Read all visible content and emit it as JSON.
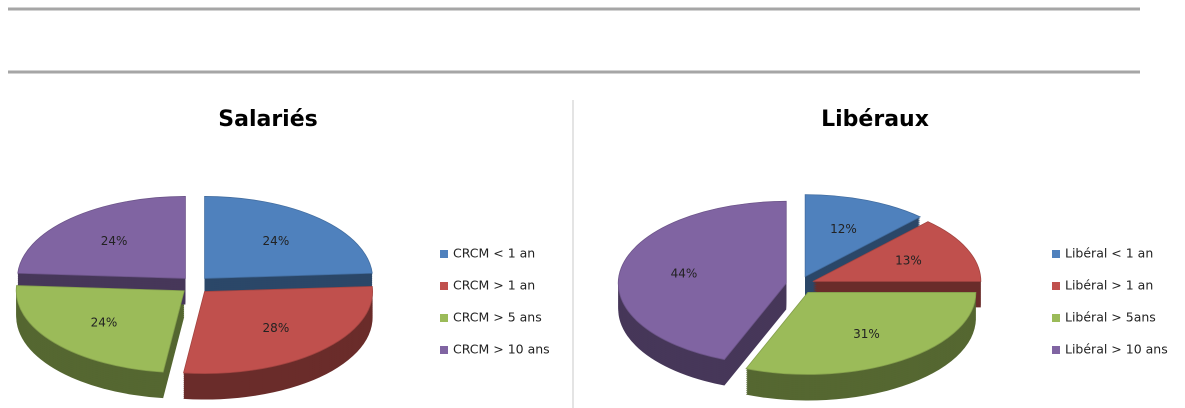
{
  "chart_data": [
    {
      "type": "pie",
      "title": "Salariés",
      "categories": [
        "CRCM < 1 an",
        "CRCM > 1 an",
        "CRCM > 5 ans",
        "CRCM > 10 ans"
      ],
      "values": [
        24,
        28,
        24,
        24
      ],
      "value_labels": [
        "24%",
        "28%",
        "24%",
        "24%"
      ],
      "colors": [
        "#4f81bd",
        "#c0504d",
        "#9bbb59",
        "#8064a2"
      ],
      "legend": "right"
    },
    {
      "type": "pie",
      "title": "Libéraux",
      "categories": [
        "Libéral < 1 an",
        "Libéral > 1 an",
        "Libéral > 5ans",
        "Libéral > 10 ans"
      ],
      "values": [
        12,
        13,
        31,
        44
      ],
      "value_labels": [
        "12%",
        "13%",
        "31%",
        "44%"
      ],
      "colors": [
        "#4f81bd",
        "#c0504d",
        "#9bbb59",
        "#8064a2"
      ],
      "legend": "right"
    }
  ]
}
